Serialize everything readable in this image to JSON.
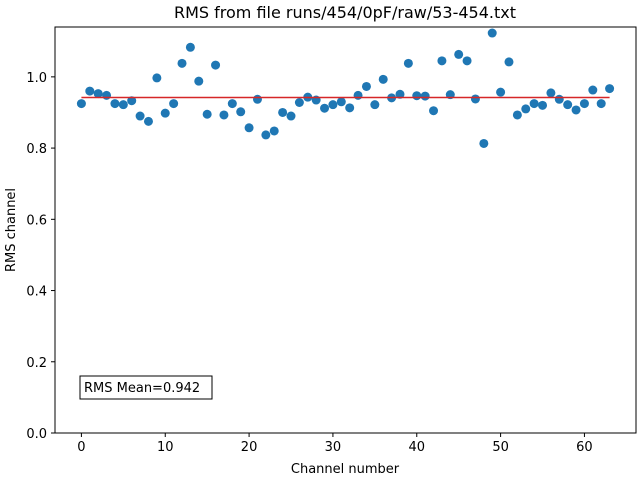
{
  "chart_data": {
    "type": "scatter",
    "title": "RMS from file runs/454/0pF/raw/53-454.txt",
    "xlabel": "Channel number",
    "ylabel": "RMS channel",
    "xlim": [
      -3.15,
      66.15
    ],
    "ylim": [
      0.0,
      1.14
    ],
    "xticks": [
      0,
      10,
      20,
      30,
      40,
      50,
      60
    ],
    "yticks": [
      0.0,
      0.2,
      0.4,
      0.6,
      0.8,
      1.0
    ],
    "xtick_labels": [
      "0",
      "10",
      "20",
      "30",
      "40",
      "50",
      "60"
    ],
    "ytick_labels": [
      "0.0",
      "0.2",
      "0.4",
      "0.6",
      "0.8",
      "1.0"
    ],
    "grid": false,
    "marker_color": "#1f77b4",
    "mean_line_color": "#d62728",
    "x": [
      0,
      1,
      2,
      3,
      4,
      5,
      6,
      7,
      8,
      9,
      10,
      11,
      12,
      13,
      14,
      15,
      16,
      17,
      18,
      19,
      20,
      21,
      22,
      23,
      24,
      25,
      26,
      27,
      28,
      29,
      30,
      31,
      32,
      33,
      34,
      35,
      36,
      37,
      38,
      39,
      40,
      41,
      42,
      43,
      44,
      45,
      46,
      47,
      48,
      49,
      50,
      51,
      52,
      53,
      54,
      55,
      56,
      57,
      58,
      59,
      60,
      61,
      62,
      63
    ],
    "y": [
      0.925,
      0.96,
      0.953,
      0.948,
      0.925,
      0.922,
      0.933,
      0.89,
      0.875,
      0.997,
      0.898,
      0.925,
      1.038,
      1.083,
      0.988,
      0.895,
      1.033,
      0.893,
      0.925,
      0.902,
      0.857,
      0.937,
      0.837,
      0.848,
      0.9,
      0.89,
      0.928,
      0.943,
      0.935,
      0.912,
      0.922,
      0.93,
      0.913,
      0.948,
      0.973,
      0.922,
      0.993,
      0.941,
      0.951,
      1.038,
      0.947,
      0.946,
      0.905,
      1.045,
      0.95,
      1.063,
      1.045,
      0.938,
      0.813,
      1.123,
      0.957,
      1.042,
      0.893,
      0.91,
      0.925,
      0.92,
      0.955,
      0.937,
      0.922,
      0.907,
      0.925,
      0.963,
      0.925,
      0.967
    ],
    "mean_line": {
      "x": [
        0,
        63
      ],
      "y": 0.942
    },
    "annotation": "RMS Mean=0.942"
  }
}
